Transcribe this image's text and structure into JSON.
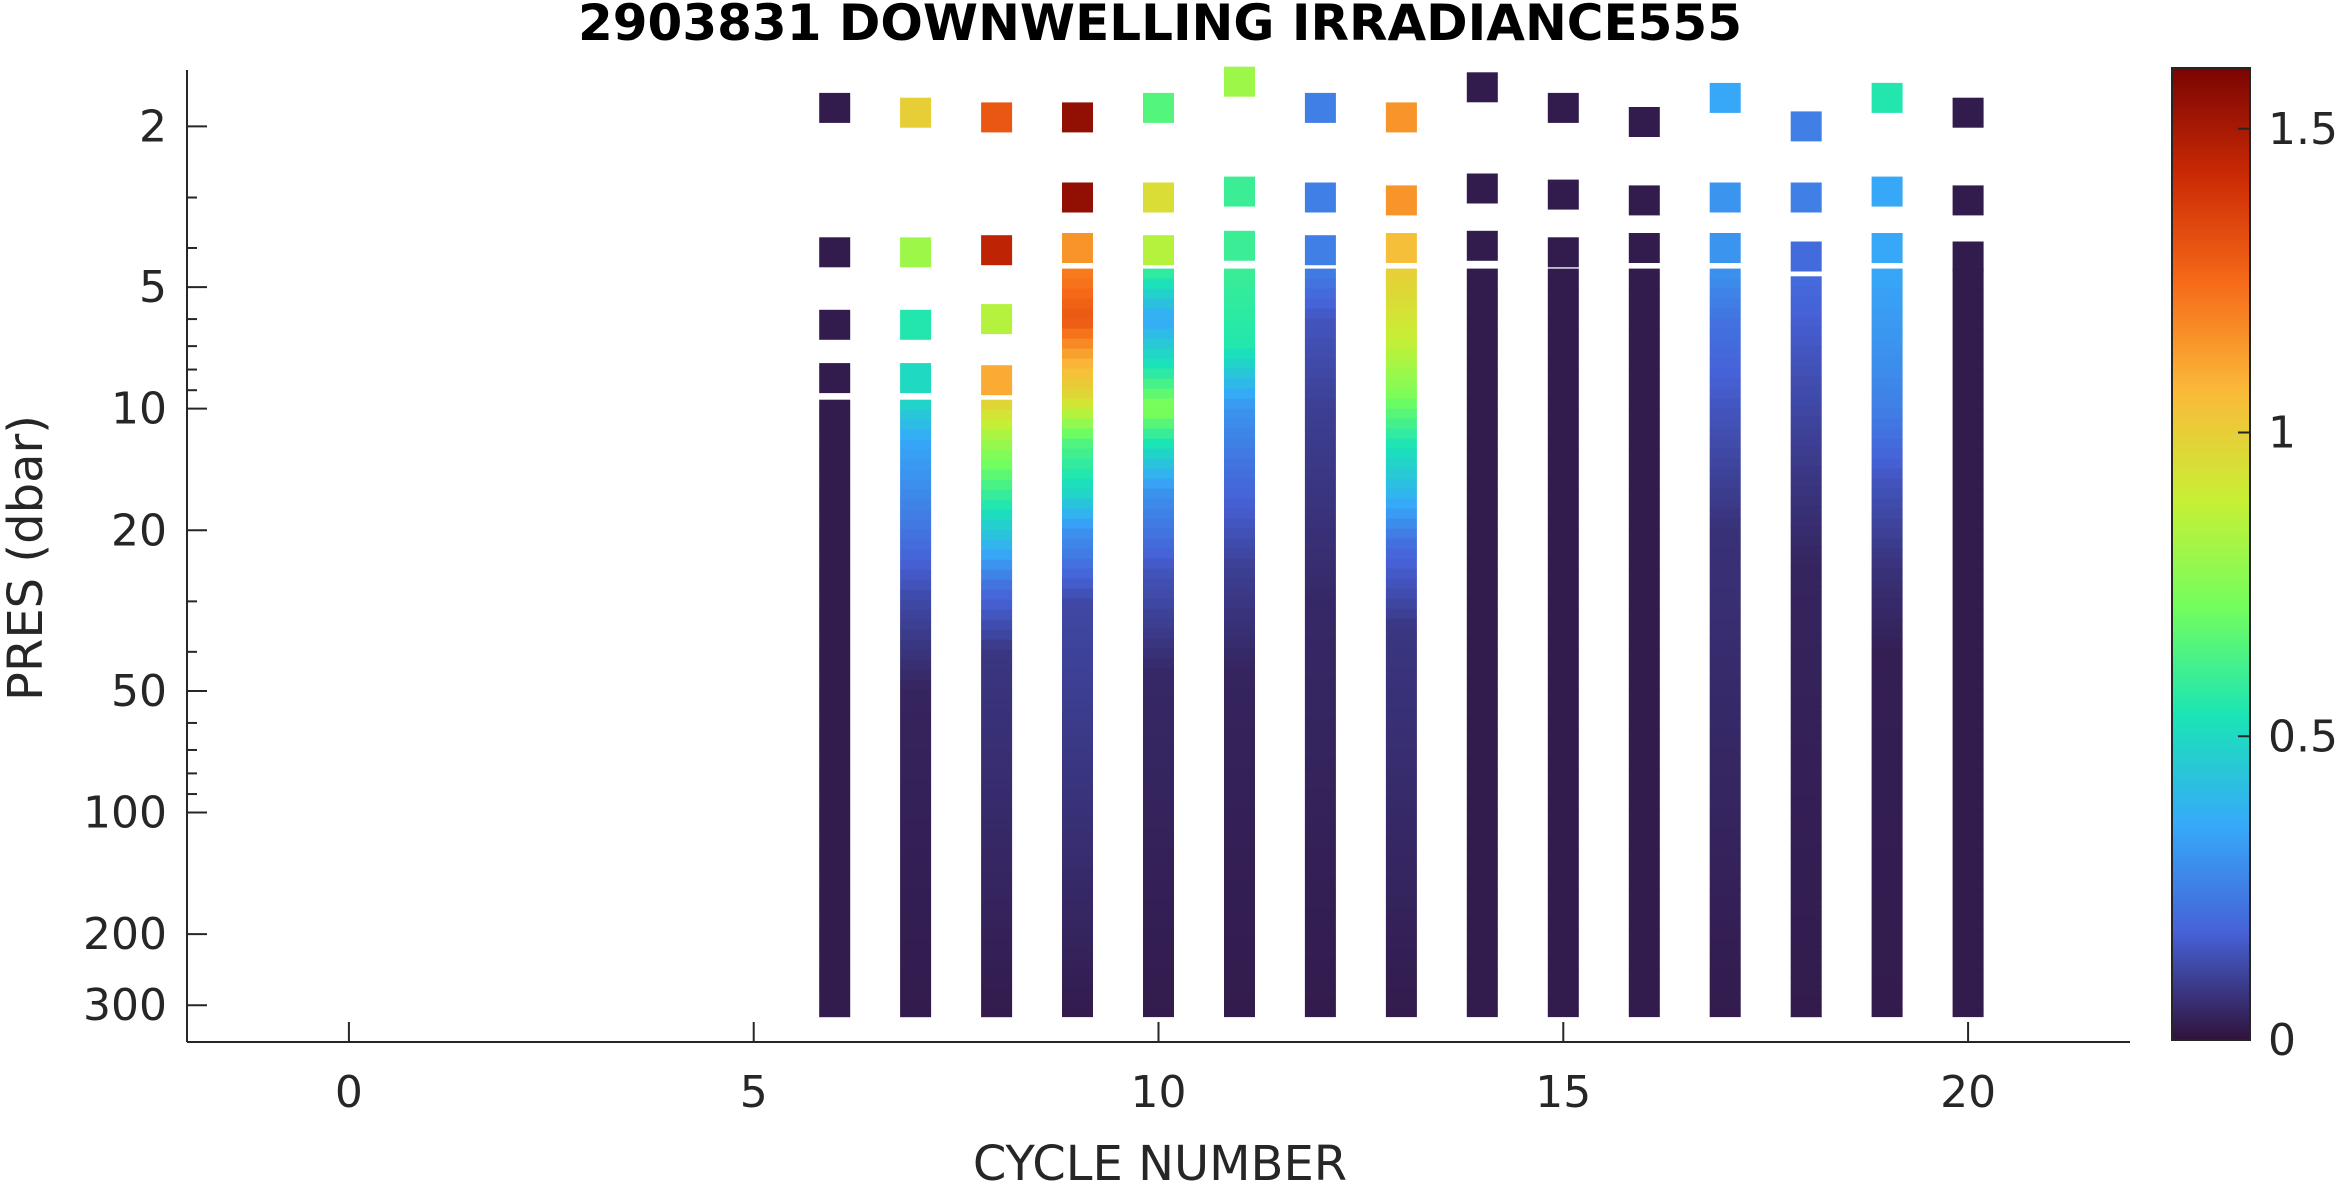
{
  "chart_data": {
    "type": "heatmap",
    "title": "2903831  DOWNWELLING IRRADIANCE555",
    "xlabel": "CYCLE NUMBER",
    "ylabel": "PRES (dbar)",
    "xlim": [
      -2,
      22
    ],
    "ylim": [
      370,
      1.45
    ],
    "y_scale": "log",
    "x_ticks": [
      0,
      5,
      10,
      15,
      20
    ],
    "x_tick_labels": [
      "0",
      "5",
      "10",
      "15",
      "20"
    ],
    "y_ticks": [
      2,
      5,
      10,
      20,
      50,
      100,
      200,
      300
    ],
    "y_tick_labels": [
      "2",
      "5",
      "10",
      "20",
      "50",
      "100",
      "200",
      "300"
    ],
    "colorbar": {
      "range": [
        0,
        1.6
      ],
      "ticks": [
        0,
        0.5,
        1,
        1.5
      ],
      "tick_labels": [
        "0",
        "0.5",
        "1",
        "1.5"
      ],
      "colormap": "turbo",
      "stops": [
        "#30123b",
        "#4662d7",
        "#36aaf9",
        "#1ae4b6",
        "#72fe5e",
        "#c8ef34",
        "#faba39",
        "#f66b19",
        "#cb2a04",
        "#7a0403"
      ]
    },
    "series": [
      {
        "cycle": 6,
        "points": [
          [
            1.8,
            0.02
          ],
          [
            4.1,
            0.02
          ],
          [
            6.2,
            0.02
          ],
          [
            8.4,
            0.02
          ]
        ],
        "deep": {
          "from": 9.5,
          "to": 320,
          "profile": [
            [
              9.5,
              0.02
            ],
            [
              320,
              0.02
            ]
          ]
        }
      },
      {
        "cycle": 7,
        "points": [
          [
            1.85,
            1.0
          ],
          [
            4.1,
            0.8
          ],
          [
            6.2,
            0.55
          ],
          [
            8.4,
            0.5
          ]
        ],
        "deep": {
          "from": 9.5,
          "to": 320,
          "profile": [
            [
              9.5,
              0.5
            ],
            [
              12,
              0.35
            ],
            [
              18,
              0.25
            ],
            [
              30,
              0.12
            ],
            [
              50,
              0.04
            ],
            [
              320,
              0.02
            ]
          ]
        }
      },
      {
        "cycle": 8,
        "points": [
          [
            1.9,
            1.3
          ],
          [
            4.05,
            1.45
          ],
          [
            6.0,
            0.85
          ],
          [
            8.5,
            1.1
          ]
        ],
        "deep": {
          "from": 9.5,
          "to": 320,
          "profile": [
            [
              9.5,
              1.0
            ],
            [
              12,
              0.8
            ],
            [
              15,
              0.65
            ],
            [
              20,
              0.45
            ],
            [
              28,
              0.2
            ],
            [
              40,
              0.08
            ],
            [
              320,
              0.02
            ]
          ]
        }
      },
      {
        "cycle": 9,
        "points": [
          [
            1.9,
            1.55
          ],
          [
            3.0,
            1.55
          ],
          [
            4.0,
            1.15
          ]
        ],
        "deep": {
          "from": 4.5,
          "to": 320,
          "profile": [
            [
              4.5,
              1.2
            ],
            [
              6.0,
              1.3
            ],
            [
              7.5,
              1.1
            ],
            [
              9.5,
              0.95
            ],
            [
              12,
              0.65
            ],
            [
              16,
              0.5
            ],
            [
              20,
              0.3
            ],
            [
              30,
              0.12
            ],
            [
              320,
              0.02
            ]
          ]
        }
      },
      {
        "cycle": 10,
        "points": [
          [
            1.8,
            0.65
          ],
          [
            3.0,
            0.95
          ],
          [
            4.05,
            0.85
          ]
        ],
        "deep": {
          "from": 4.5,
          "to": 320,
          "profile": [
            [
              4.5,
              0.6
            ],
            [
              6.0,
              0.35
            ],
            [
              8.0,
              0.55
            ],
            [
              10,
              0.75
            ],
            [
              12,
              0.55
            ],
            [
              16,
              0.3
            ],
            [
              25,
              0.15
            ],
            [
              45,
              0.05
            ],
            [
              320,
              0.02
            ]
          ]
        }
      },
      {
        "cycle": 11,
        "points": [
          [
            1.55,
            0.8
          ],
          [
            2.9,
            0.6
          ],
          [
            3.95,
            0.6
          ]
        ],
        "deep": {
          "from": 4.5,
          "to": 320,
          "profile": [
            [
              4.5,
              0.6
            ],
            [
              7,
              0.55
            ],
            [
              10,
              0.3
            ],
            [
              15,
              0.2
            ],
            [
              25,
              0.1
            ],
            [
              45,
              0.04
            ],
            [
              320,
              0.02
            ]
          ]
        }
      },
      {
        "cycle": 12,
        "points": [
          [
            1.8,
            0.25
          ],
          [
            3.0,
            0.25
          ],
          [
            4.05,
            0.25
          ]
        ],
        "deep": {
          "from": 4.5,
          "to": 320,
          "profile": [
            [
              4.5,
              0.25
            ],
            [
              6,
              0.15
            ],
            [
              10,
              0.1
            ],
            [
              30,
              0.05
            ],
            [
              320,
              0.02
            ]
          ]
        }
      },
      {
        "cycle": 13,
        "points": [
          [
            1.9,
            1.15
          ],
          [
            3.05,
            1.15
          ],
          [
            4.0,
            1.05
          ]
        ],
        "deep": {
          "from": 4.5,
          "to": 320,
          "profile": [
            [
              4.5,
              1.0
            ],
            [
              6.5,
              0.9
            ],
            [
              9,
              0.75
            ],
            [
              12,
              0.55
            ],
            [
              16,
              0.4
            ],
            [
              22,
              0.2
            ],
            [
              35,
              0.08
            ],
            [
              320,
              0.02
            ]
          ]
        }
      },
      {
        "cycle": 14,
        "points": [
          [
            1.6,
            0.02
          ],
          [
            2.85,
            0.02
          ],
          [
            3.95,
            0.02
          ]
        ],
        "deep": {
          "from": 4.5,
          "to": 320,
          "profile": [
            [
              4.5,
              0.02
            ],
            [
              320,
              0.02
            ]
          ]
        }
      },
      {
        "cycle": 15,
        "points": [
          [
            1.8,
            0.02
          ],
          [
            2.95,
            0.02
          ],
          [
            4.1,
            0.02
          ]
        ],
        "deep": {
          "from": 4.5,
          "to": 320,
          "profile": [
            [
              4.5,
              0.02
            ],
            [
              320,
              0.02
            ]
          ]
        }
      },
      {
        "cycle": 16,
        "points": [
          [
            1.95,
            0.02
          ],
          [
            3.05,
            0.02
          ],
          [
            4.0,
            0.02
          ]
        ],
        "deep": {
          "from": 4.5,
          "to": 320,
          "profile": [
            [
              4.5,
              0.02
            ],
            [
              320,
              0.02
            ]
          ]
        }
      },
      {
        "cycle": 17,
        "points": [
          [
            1.7,
            0.35
          ],
          [
            3.0,
            0.3
          ],
          [
            4.0,
            0.3
          ]
        ],
        "deep": {
          "from": 4.5,
          "to": 320,
          "profile": [
            [
              4.5,
              0.3
            ],
            [
              6,
              0.22
            ],
            [
              10,
              0.15
            ],
            [
              20,
              0.07
            ],
            [
              320,
              0.02
            ]
          ]
        }
      },
      {
        "cycle": 18,
        "points": [
          [
            2.0,
            0.25
          ],
          [
            3.0,
            0.25
          ],
          [
            4.2,
            0.2
          ]
        ],
        "deep": {
          "from": 4.7,
          "to": 320,
          "profile": [
            [
              4.7,
              0.2
            ],
            [
              8,
              0.14
            ],
            [
              15,
              0.08
            ],
            [
              25,
              0.04
            ],
            [
              320,
              0.02
            ]
          ]
        }
      },
      {
        "cycle": 19,
        "points": [
          [
            1.7,
            0.55
          ],
          [
            2.9,
            0.35
          ],
          [
            4.0,
            0.35
          ]
        ],
        "deep": {
          "from": 4.5,
          "to": 320,
          "profile": [
            [
              4.5,
              0.35
            ],
            [
              7,
              0.3
            ],
            [
              10,
              0.25
            ],
            [
              15,
              0.15
            ],
            [
              25,
              0.07
            ],
            [
              40,
              0.03
            ],
            [
              320,
              0.02
            ]
          ]
        }
      },
      {
        "cycle": 20,
        "points": [
          [
            1.85,
            0.02
          ],
          [
            3.05,
            0.02
          ],
          [
            4.2,
            0.02
          ]
        ],
        "deep": {
          "from": 4.5,
          "to": 320,
          "profile": [
            [
              4.5,
              0.02
            ],
            [
              320,
              0.02
            ]
          ]
        }
      }
    ]
  }
}
